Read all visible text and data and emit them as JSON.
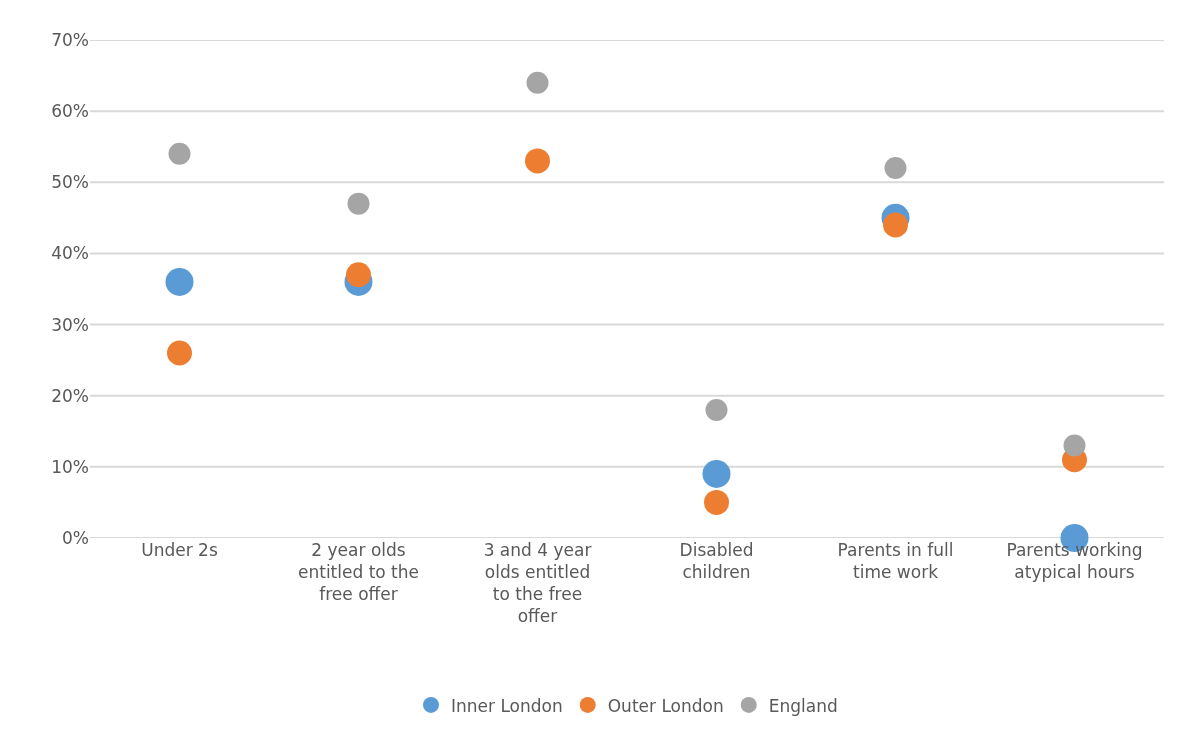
{
  "chart_data": {
    "type": "scatter",
    "categories": [
      "Under 2s",
      "2 year olds entitled to the free offer",
      "3 and 4 year olds entitled to the free offer",
      "Disabled children",
      "Parents in full time work",
      "Parents working atypical hours"
    ],
    "series": [
      {
        "name": "Inner London",
        "color": "#5b9bd5",
        "values": [
          36,
          36,
          null,
          9,
          45,
          0
        ]
      },
      {
        "name": "Outer London",
        "color": "#ed7d31",
        "values": [
          26,
          37,
          53,
          5,
          44,
          11
        ]
      },
      {
        "name": "England",
        "color": "#a5a5a5",
        "values": [
          54,
          47,
          64,
          18,
          52,
          13
        ]
      }
    ],
    "ylim": [
      0,
      70
    ],
    "yticks": [
      {
        "value": 0,
        "label": "0%"
      },
      {
        "value": 10,
        "label": "10%"
      },
      {
        "value": 20,
        "label": "20%"
      },
      {
        "value": 30,
        "label": "30%"
      },
      {
        "value": 40,
        "label": "40%"
      },
      {
        "value": 50,
        "label": "50%"
      },
      {
        "value": 60,
        "label": "60%"
      },
      {
        "value": 70,
        "label": "70%"
      }
    ],
    "grid": "y",
    "legend": "bottom",
    "marker": "circle"
  }
}
